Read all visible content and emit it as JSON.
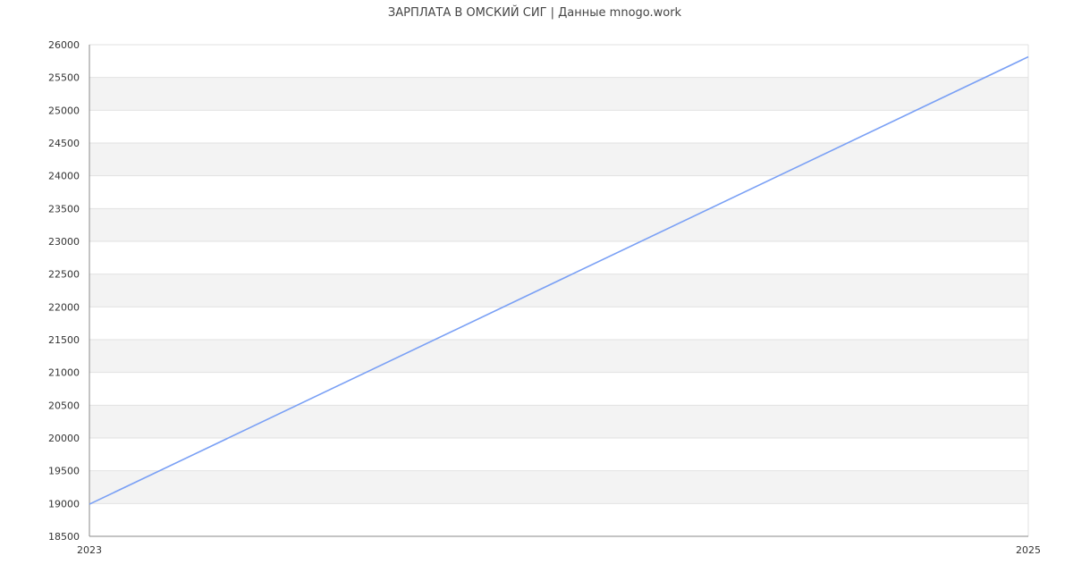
{
  "chart_data": {
    "type": "line",
    "title": "ЗАРПЛАТА В ОМСКИЙ СИГ | Данные mnogo.work",
    "xlabel": "",
    "ylabel": "",
    "x": [
      "2023",
      "2025"
    ],
    "series": [
      {
        "values": [
          18990,
          25815
        ],
        "color": "#7aa0f5"
      }
    ],
    "xlim": [
      "2023",
      "2025"
    ],
    "ylim": [
      18500,
      26000
    ],
    "yticks": [
      18500,
      19000,
      19500,
      20000,
      20500,
      21000,
      21500,
      22000,
      22500,
      23000,
      23500,
      24000,
      24500,
      25000,
      25500,
      26000
    ],
    "xticks": [
      "2023",
      "2025"
    ],
    "grid": true,
    "band_color": "#f3f3f3",
    "grid_color": "#e2e2e2",
    "axis_color": "#888888"
  }
}
